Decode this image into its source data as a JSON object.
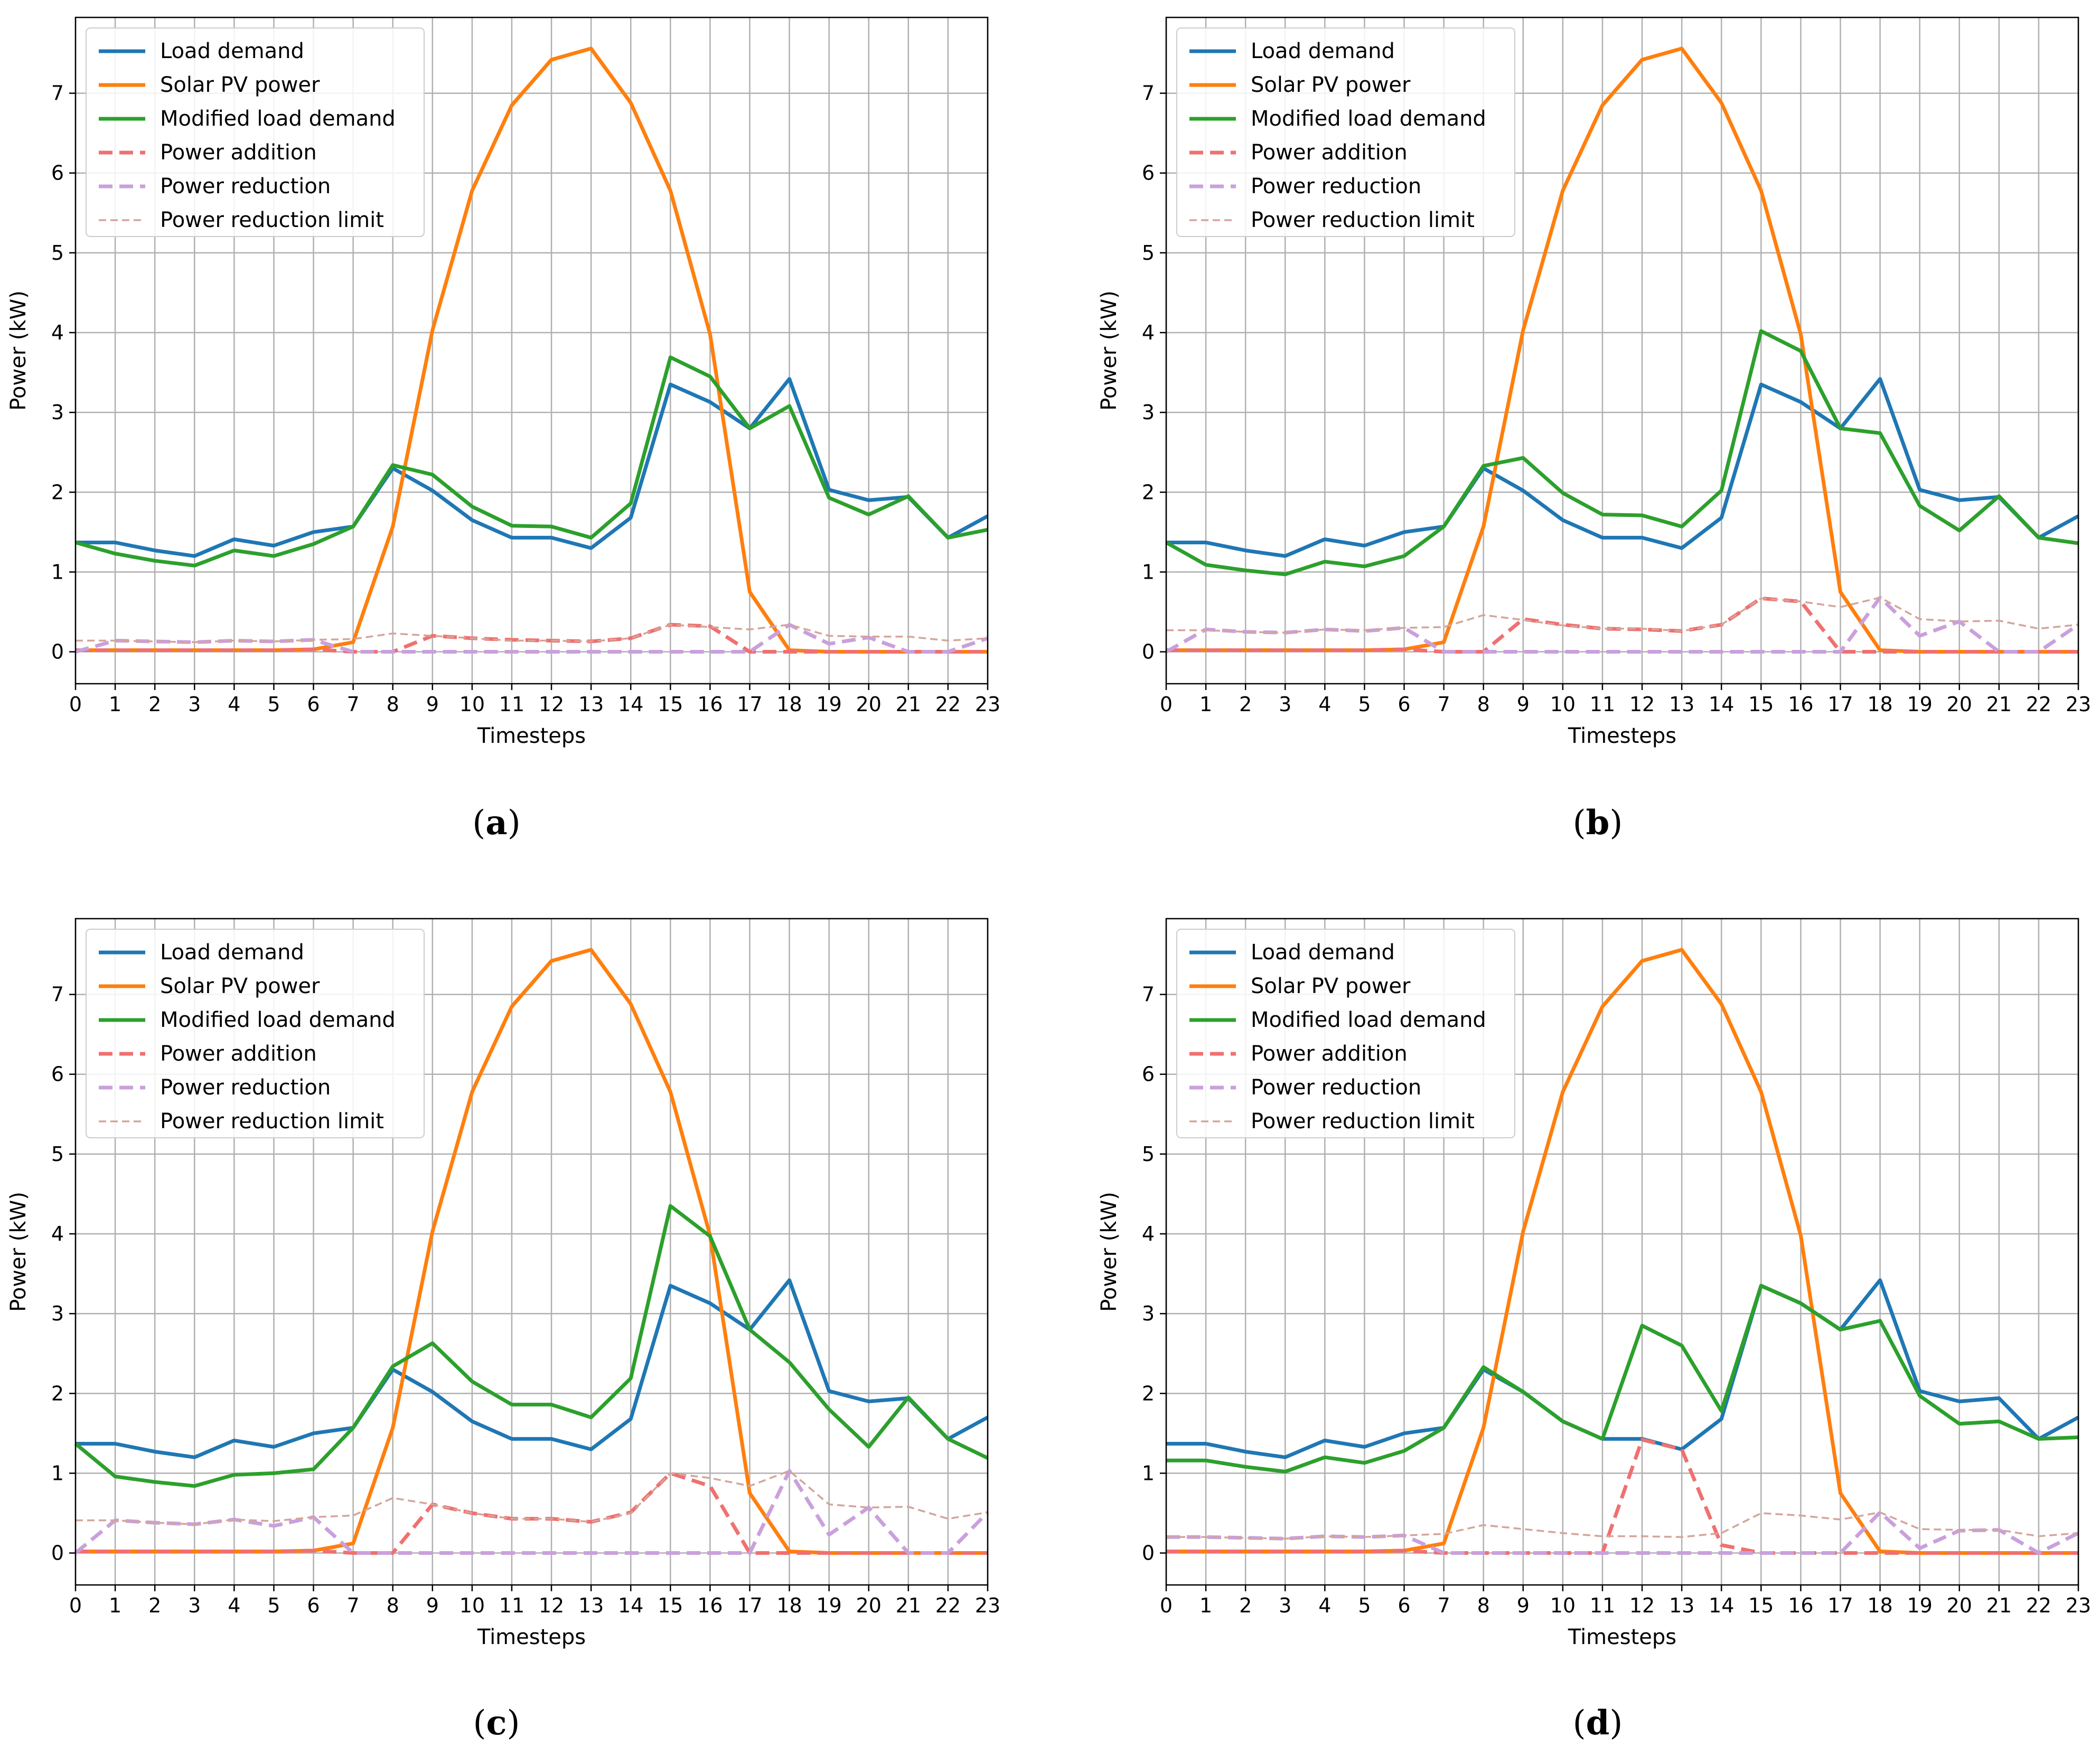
{
  "chart_data": [
    {
      "type": "line",
      "caption": "a",
      "xlabel": "Timesteps",
      "ylabel": "Power (kW)",
      "xlim": [
        0,
        23
      ],
      "ylim": [
        -0.4,
        7.95
      ],
      "grid": true,
      "legend_position": "top-left",
      "x": [
        0,
        1,
        2,
        3,
        4,
        5,
        6,
        7,
        8,
        9,
        10,
        11,
        12,
        13,
        14,
        15,
        16,
        17,
        18,
        19,
        20,
        21,
        22,
        23
      ],
      "x_ticks": [
        "0",
        "1",
        "2",
        "3",
        "4",
        "5",
        "6",
        "7",
        "8",
        "9",
        "10",
        "11",
        "12",
        "13",
        "14",
        "15",
        "16",
        "17",
        "18",
        "19",
        "20",
        "21",
        "22",
        "23"
      ],
      "y_ticks": [
        "0",
        "1",
        "2",
        "3",
        "4",
        "5",
        "6",
        "7"
      ],
      "series": [
        {
          "name": "Load demand",
          "color": "#1f77b4",
          "style": "solid",
          "values": [
            1.37,
            1.37,
            1.27,
            1.2,
            1.41,
            1.33,
            1.5,
            1.57,
            2.3,
            2.02,
            1.65,
            1.43,
            1.43,
            1.3,
            1.68,
            3.35,
            3.13,
            2.8,
            3.42,
            2.03,
            1.9,
            1.94,
            1.43,
            1.7
          ]
        },
        {
          "name": "Solar PV power",
          "color": "#ff7f0e",
          "style": "solid",
          "values": [
            0.02,
            0.02,
            0.02,
            0.02,
            0.02,
            0.02,
            0.03,
            0.12,
            1.57,
            4.03,
            5.78,
            6.85,
            7.42,
            7.56,
            6.88,
            5.78,
            3.98,
            0.75,
            0.02,
            0.0,
            0.0,
            0.0,
            0.0,
            0.0
          ]
        },
        {
          "name": "Modified load demand",
          "color": "#2ca02c",
          "style": "solid",
          "values": [
            1.37,
            1.23,
            1.14,
            1.08,
            1.27,
            1.2,
            1.35,
            1.57,
            2.34,
            2.22,
            1.82,
            1.58,
            1.57,
            1.43,
            1.86,
            3.69,
            3.45,
            2.8,
            3.08,
            1.93,
            1.72,
            1.95,
            1.43,
            1.53
          ]
        },
        {
          "name": "Power addition",
          "color": "#f07070",
          "style": "dash",
          "values": [
            0.02,
            0.02,
            0.02,
            0.02,
            0.02,
            0.02,
            0.03,
            0.0,
            0.0,
            0.2,
            0.17,
            0.15,
            0.14,
            0.13,
            0.17,
            0.34,
            0.32,
            0.0,
            0.0,
            0.0,
            0.0,
            0.0,
            0.0,
            0.0
          ]
        },
        {
          "name": "Power reduction",
          "color": "#c9a0dc",
          "style": "dash",
          "values": [
            0.0,
            0.14,
            0.13,
            0.12,
            0.14,
            0.13,
            0.15,
            0.0,
            0.0,
            0.0,
            0.0,
            0.0,
            0.0,
            0.0,
            0.0,
            0.0,
            0.0,
            0.0,
            0.34,
            0.1,
            0.18,
            0.0,
            0.0,
            0.17
          ]
        },
        {
          "name": "Power reduction limit",
          "color": "#d4a59a",
          "style": "thin-dash",
          "values": [
            0.14,
            0.14,
            0.13,
            0.12,
            0.14,
            0.13,
            0.15,
            0.16,
            0.23,
            0.2,
            0.17,
            0.14,
            0.14,
            0.13,
            0.17,
            0.34,
            0.31,
            0.28,
            0.34,
            0.2,
            0.19,
            0.19,
            0.14,
            0.17
          ]
        }
      ]
    },
    {
      "type": "line",
      "caption": "b",
      "xlabel": "Timesteps",
      "ylabel": "Power (kW)",
      "xlim": [
        0,
        23
      ],
      "ylim": [
        -0.4,
        7.95
      ],
      "grid": true,
      "legend_position": "top-left",
      "x": [
        0,
        1,
        2,
        3,
        4,
        5,
        6,
        7,
        8,
        9,
        10,
        11,
        12,
        13,
        14,
        15,
        16,
        17,
        18,
        19,
        20,
        21,
        22,
        23
      ],
      "x_ticks": [
        "0",
        "1",
        "2",
        "3",
        "4",
        "5",
        "6",
        "7",
        "8",
        "9",
        "10",
        "11",
        "12",
        "13",
        "14",
        "15",
        "16",
        "17",
        "18",
        "19",
        "20",
        "21",
        "22",
        "23"
      ],
      "y_ticks": [
        "0",
        "1",
        "2",
        "3",
        "4",
        "5",
        "6",
        "7"
      ],
      "series": [
        {
          "name": "Load demand",
          "color": "#1f77b4",
          "style": "solid",
          "values": [
            1.37,
            1.37,
            1.27,
            1.2,
            1.41,
            1.33,
            1.5,
            1.57,
            2.3,
            2.02,
            1.65,
            1.43,
            1.43,
            1.3,
            1.68,
            3.35,
            3.13,
            2.8,
            3.42,
            2.03,
            1.9,
            1.94,
            1.43,
            1.7
          ]
        },
        {
          "name": "Solar PV power",
          "color": "#ff7f0e",
          "style": "solid",
          "values": [
            0.02,
            0.02,
            0.02,
            0.02,
            0.02,
            0.02,
            0.03,
            0.12,
            1.57,
            4.03,
            5.78,
            6.85,
            7.42,
            7.56,
            6.88,
            5.78,
            3.98,
            0.75,
            0.02,
            0.0,
            0.0,
            0.0,
            0.0,
            0.0
          ]
        },
        {
          "name": "Modified load demand",
          "color": "#2ca02c",
          "style": "solid",
          "values": [
            1.37,
            1.09,
            1.02,
            0.97,
            1.13,
            1.07,
            1.2,
            1.57,
            2.33,
            2.43,
            1.99,
            1.72,
            1.71,
            1.57,
            2.02,
            4.02,
            3.77,
            2.8,
            2.74,
            1.83,
            1.52,
            1.95,
            1.43,
            1.36
          ]
        },
        {
          "name": "Power addition",
          "color": "#f07070",
          "style": "dash",
          "values": [
            0.02,
            0.02,
            0.02,
            0.02,
            0.02,
            0.02,
            0.03,
            0.0,
            0.0,
            0.41,
            0.34,
            0.29,
            0.28,
            0.26,
            0.34,
            0.67,
            0.63,
            0.0,
            0.0,
            0.0,
            0.0,
            0.0,
            0.0,
            0.0
          ]
        },
        {
          "name": "Power reduction",
          "color": "#c9a0dc",
          "style": "dash",
          "values": [
            0.0,
            0.28,
            0.25,
            0.24,
            0.28,
            0.26,
            0.3,
            0.0,
            0.0,
            0.0,
            0.0,
            0.0,
            0.0,
            0.0,
            0.0,
            0.0,
            0.0,
            0.0,
            0.68,
            0.2,
            0.38,
            0.0,
            0.0,
            0.34
          ]
        },
        {
          "name": "Power reduction limit",
          "color": "#d4a59a",
          "style": "thin-dash",
          "values": [
            0.27,
            0.27,
            0.25,
            0.24,
            0.28,
            0.27,
            0.3,
            0.31,
            0.46,
            0.4,
            0.33,
            0.29,
            0.29,
            0.26,
            0.34,
            0.67,
            0.63,
            0.56,
            0.68,
            0.41,
            0.38,
            0.39,
            0.29,
            0.34
          ]
        }
      ]
    },
    {
      "type": "line",
      "caption": "c",
      "xlabel": "Timesteps",
      "ylabel": "Power (kW)",
      "xlim": [
        0,
        23
      ],
      "ylim": [
        -0.4,
        7.95
      ],
      "grid": true,
      "legend_position": "top-left",
      "x": [
        0,
        1,
        2,
        3,
        4,
        5,
        6,
        7,
        8,
        9,
        10,
        11,
        12,
        13,
        14,
        15,
        16,
        17,
        18,
        19,
        20,
        21,
        22,
        23
      ],
      "x_ticks": [
        "0",
        "1",
        "2",
        "3",
        "4",
        "5",
        "6",
        "7",
        "8",
        "9",
        "10",
        "11",
        "12",
        "13",
        "14",
        "15",
        "16",
        "17",
        "18",
        "19",
        "20",
        "21",
        "22",
        "23"
      ],
      "y_ticks": [
        "0",
        "1",
        "2",
        "3",
        "4",
        "5",
        "6",
        "7"
      ],
      "series": [
        {
          "name": "Load demand",
          "color": "#1f77b4",
          "style": "solid",
          "values": [
            1.37,
            1.37,
            1.27,
            1.2,
            1.41,
            1.33,
            1.5,
            1.57,
            2.3,
            2.02,
            1.65,
            1.43,
            1.43,
            1.3,
            1.68,
            3.35,
            3.13,
            2.8,
            3.42,
            2.03,
            1.9,
            1.94,
            1.43,
            1.7
          ]
        },
        {
          "name": "Solar PV power",
          "color": "#ff7f0e",
          "style": "solid",
          "values": [
            0.02,
            0.02,
            0.02,
            0.02,
            0.02,
            0.02,
            0.03,
            0.12,
            1.57,
            4.03,
            5.78,
            6.85,
            7.42,
            7.56,
            6.88,
            5.78,
            3.98,
            0.75,
            0.02,
            0.0,
            0.0,
            0.0,
            0.0,
            0.0
          ]
        },
        {
          "name": "Modified load demand",
          "color": "#2ca02c",
          "style": "solid",
          "values": [
            1.37,
            0.96,
            0.89,
            0.84,
            0.98,
            1.0,
            1.05,
            1.57,
            2.34,
            2.63,
            2.15,
            1.86,
            1.86,
            1.7,
            2.19,
            4.35,
            3.97,
            2.8,
            2.39,
            1.8,
            1.33,
            1.95,
            1.43,
            1.19
          ]
        },
        {
          "name": "Power addition",
          "color": "#f07070",
          "style": "dash",
          "values": [
            0.02,
            0.02,
            0.02,
            0.02,
            0.02,
            0.02,
            0.03,
            0.0,
            0.0,
            0.61,
            0.5,
            0.43,
            0.43,
            0.39,
            0.51,
            1.0,
            0.84,
            0.0,
            0.0,
            0.0,
            0.0,
            0.0,
            0.0,
            0.0
          ]
        },
        {
          "name": "Power reduction",
          "color": "#c9a0dc",
          "style": "dash",
          "values": [
            0.0,
            0.41,
            0.38,
            0.36,
            0.42,
            0.34,
            0.45,
            0.0,
            0.0,
            0.0,
            0.0,
            0.0,
            0.0,
            0.0,
            0.0,
            0.0,
            0.0,
            0.0,
            1.03,
            0.23,
            0.57,
            0.0,
            0.0,
            0.51
          ]
        },
        {
          "name": "Power reduction limit",
          "color": "#d4a59a",
          "style": "thin-dash",
          "values": [
            0.41,
            0.41,
            0.38,
            0.36,
            0.42,
            0.4,
            0.45,
            0.47,
            0.69,
            0.61,
            0.5,
            0.43,
            0.43,
            0.39,
            0.5,
            1.0,
            0.94,
            0.84,
            1.03,
            0.61,
            0.57,
            0.58,
            0.43,
            0.51
          ]
        }
      ]
    },
    {
      "type": "line",
      "caption": "d",
      "xlabel": "Timesteps",
      "ylabel": "Power (kW)",
      "xlim": [
        0,
        23
      ],
      "ylim": [
        -0.4,
        7.95
      ],
      "grid": true,
      "legend_position": "top-left",
      "x": [
        0,
        1,
        2,
        3,
        4,
        5,
        6,
        7,
        8,
        9,
        10,
        11,
        12,
        13,
        14,
        15,
        16,
        17,
        18,
        19,
        20,
        21,
        22,
        23
      ],
      "x_ticks": [
        "0",
        "1",
        "2",
        "3",
        "4",
        "5",
        "6",
        "7",
        "8",
        "9",
        "10",
        "11",
        "12",
        "13",
        "14",
        "15",
        "16",
        "17",
        "18",
        "19",
        "20",
        "21",
        "22",
        "23"
      ],
      "y_ticks": [
        "0",
        "1",
        "2",
        "3",
        "4",
        "5",
        "6",
        "7"
      ],
      "series": [
        {
          "name": "Load demand",
          "color": "#1f77b4",
          "style": "solid",
          "values": [
            1.37,
            1.37,
            1.27,
            1.2,
            1.41,
            1.33,
            1.5,
            1.57,
            2.3,
            2.02,
            1.65,
            1.43,
            1.43,
            1.3,
            1.68,
            3.35,
            3.13,
            2.8,
            3.42,
            2.03,
            1.9,
            1.94,
            1.43,
            1.7
          ]
        },
        {
          "name": "Solar PV power",
          "color": "#ff7f0e",
          "style": "solid",
          "values": [
            0.02,
            0.02,
            0.02,
            0.02,
            0.02,
            0.02,
            0.03,
            0.12,
            1.57,
            4.03,
            5.78,
            6.85,
            7.42,
            7.56,
            6.88,
            5.78,
            3.98,
            0.75,
            0.02,
            0.0,
            0.0,
            0.0,
            0.0,
            0.0
          ]
        },
        {
          "name": "Modified load demand",
          "color": "#2ca02c",
          "style": "solid",
          "values": [
            1.16,
            1.16,
            1.08,
            1.02,
            1.2,
            1.13,
            1.28,
            1.57,
            2.33,
            2.02,
            1.65,
            1.43,
            2.85,
            2.6,
            1.78,
            3.35,
            3.13,
            2.8,
            2.91,
            1.97,
            1.62,
            1.65,
            1.43,
            1.45
          ]
        },
        {
          "name": "Power addition",
          "color": "#f07070",
          "style": "dash",
          "values": [
            0.02,
            0.02,
            0.02,
            0.02,
            0.02,
            0.02,
            0.03,
            0.0,
            0.0,
            0.0,
            0.0,
            0.0,
            1.42,
            1.3,
            0.1,
            0.0,
            0.0,
            0.0,
            0.0,
            0.0,
            0.0,
            0.0,
            0.0,
            0.0
          ]
        },
        {
          "name": "Power reduction",
          "color": "#c9a0dc",
          "style": "dash",
          "values": [
            0.2,
            0.2,
            0.19,
            0.18,
            0.21,
            0.2,
            0.22,
            0.0,
            0.0,
            0.0,
            0.0,
            0.0,
            0.0,
            0.0,
            0.0,
            0.0,
            0.0,
            0.0,
            0.51,
            0.06,
            0.28,
            0.29,
            0.0,
            0.25
          ]
        },
        {
          "name": "Power reduction limit",
          "color": "#d4a59a",
          "style": "thin-dash",
          "values": [
            0.2,
            0.2,
            0.19,
            0.18,
            0.21,
            0.2,
            0.22,
            0.24,
            0.35,
            0.3,
            0.25,
            0.21,
            0.21,
            0.2,
            0.25,
            0.5,
            0.47,
            0.42,
            0.51,
            0.3,
            0.29,
            0.29,
            0.21,
            0.25
          ]
        }
      ]
    }
  ]
}
